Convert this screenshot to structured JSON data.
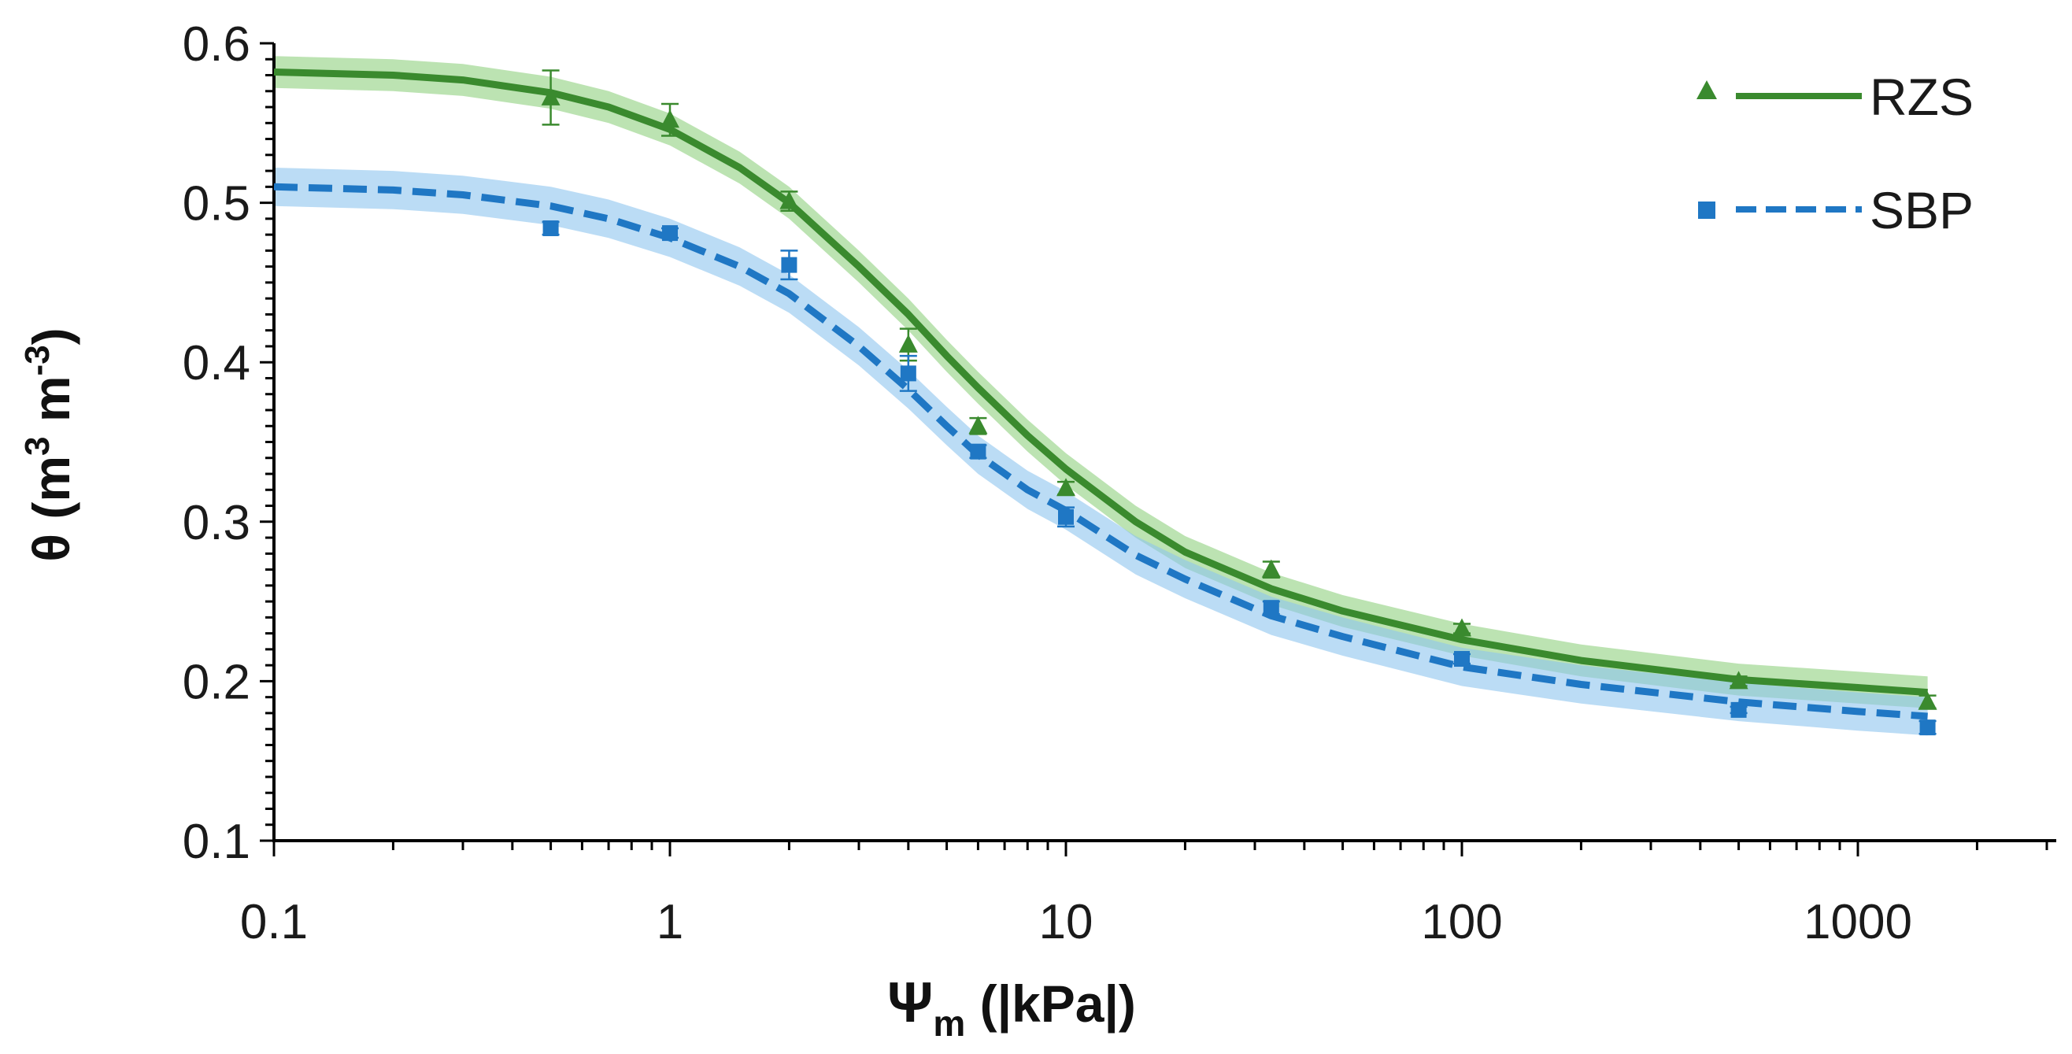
{
  "chart_data": {
    "type": "scatter",
    "title": "",
    "xlabel": {
      "main": "Ψ",
      "sub": "m",
      "rest": " (|kPa|)"
    },
    "ylabel": {
      "main": "θ (m",
      "sup1": "3",
      "mid": " m",
      "sup2": "-3",
      "end": ")"
    },
    "xscale": "log",
    "xlim": [
      0.1,
      3000
    ],
    "ylim": [
      0.1,
      0.6
    ],
    "xticks": [
      0.1,
      1,
      10,
      100,
      1000
    ],
    "xtick_labels": [
      "0.1",
      "1",
      "10",
      "100",
      "1000"
    ],
    "yticks": [
      0.1,
      0.2,
      0.3,
      0.4,
      0.5,
      0.6
    ],
    "ytick_labels": [
      "0.1",
      "0.2",
      "0.3",
      "0.4",
      "0.5",
      "0.6"
    ],
    "grid": false,
    "legend_position": "top-right",
    "series": [
      {
        "name": "RZS",
        "color": "#3a8a2e",
        "band_color": "#8fd07e",
        "marker": "triangle",
        "line_style": "solid",
        "points": [
          {
            "x": 0.5,
            "y": 0.566,
            "err": 0.017
          },
          {
            "x": 1,
            "y": 0.552,
            "err": 0.01
          },
          {
            "x": 2,
            "y": 0.501,
            "err": 0.006
          },
          {
            "x": 4,
            "y": 0.411,
            "err": 0.01
          },
          {
            "x": 6,
            "y": 0.36,
            "err": 0.005
          },
          {
            "x": 10,
            "y": 0.321,
            "err": 0.004
          },
          {
            "x": 33,
            "y": 0.27,
            "err": 0.005
          },
          {
            "x": 100,
            "y": 0.233,
            "err": 0.003
          },
          {
            "x": 500,
            "y": 0.2,
            "err": 0.003
          },
          {
            "x": 1500,
            "y": 0.187,
            "err": 0.004
          }
        ],
        "fit": {
          "x": [
            0.1,
            0.2,
            0.3,
            0.5,
            0.7,
            1,
            1.5,
            2,
            3,
            4,
            5,
            6,
            8,
            10,
            15,
            20,
            33,
            50,
            100,
            200,
            500,
            1000,
            1500
          ],
          "y": [
            0.582,
            0.58,
            0.577,
            0.569,
            0.56,
            0.546,
            0.522,
            0.5,
            0.46,
            0.43,
            0.404,
            0.384,
            0.354,
            0.333,
            0.3,
            0.281,
            0.258,
            0.244,
            0.226,
            0.213,
            0.201,
            0.196,
            0.193
          ]
        },
        "band_halfwidth": 0.01
      },
      {
        "name": "SBP",
        "color": "#1f77c4",
        "band_color": "#8ec5ee",
        "marker": "square",
        "line_style": "dashed",
        "points": [
          {
            "x": 0.5,
            "y": 0.484,
            "err": 0.004
          },
          {
            "x": 1,
            "y": 0.481,
            "err": 0.003
          },
          {
            "x": 2,
            "y": 0.461,
            "err": 0.009
          },
          {
            "x": 4,
            "y": 0.393,
            "err": 0.011
          },
          {
            "x": 6,
            "y": 0.344,
            "err": 0.004
          },
          {
            "x": 10,
            "y": 0.303,
            "err": 0.006
          },
          {
            "x": 33,
            "y": 0.246,
            "err": 0.004
          },
          {
            "x": 100,
            "y": 0.214,
            "err": 0.003
          },
          {
            "x": 500,
            "y": 0.182,
            "err": 0.002
          },
          {
            "x": 1500,
            "y": 0.171,
            "err": 0.004
          }
        ],
        "fit": {
          "x": [
            0.1,
            0.2,
            0.3,
            0.5,
            0.7,
            1,
            1.5,
            2,
            3,
            4,
            5,
            6,
            8,
            10,
            15,
            20,
            33,
            50,
            100,
            200,
            500,
            1000,
            1500
          ],
          "y": [
            0.51,
            0.508,
            0.505,
            0.498,
            0.49,
            0.478,
            0.46,
            0.443,
            0.41,
            0.383,
            0.36,
            0.342,
            0.32,
            0.307,
            0.279,
            0.264,
            0.241,
            0.228,
            0.209,
            0.198,
            0.187,
            0.181,
            0.178
          ]
        },
        "band_halfwidth": 0.012
      }
    ]
  }
}
